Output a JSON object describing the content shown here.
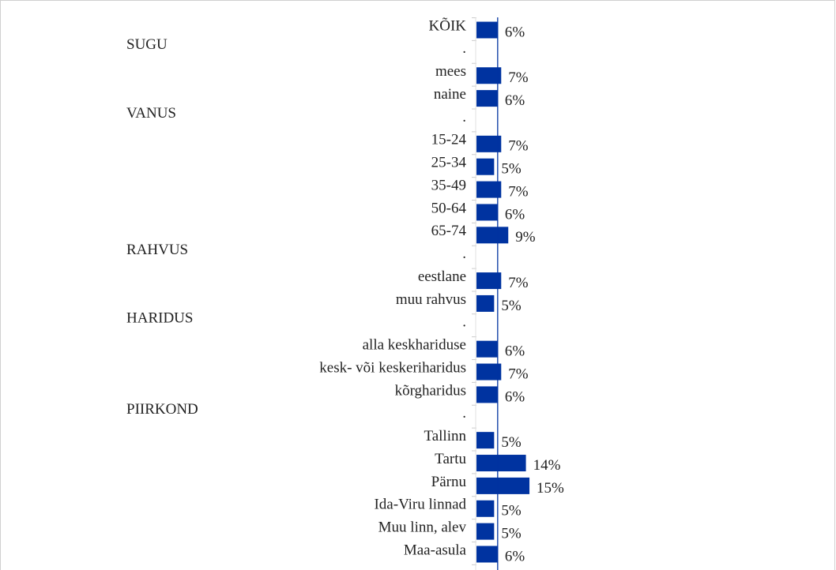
{
  "chart_data": {
    "type": "bar",
    "orientation": "horizontal",
    "categories": [
      "KÕIK",
      ".",
      "mees",
      "naine",
      ".",
      "15-24",
      "25-34",
      "35-49",
      "50-64",
      "65-74",
      ".",
      "eestlane",
      "muu rahvus",
      ".",
      "alla keskhariduse",
      "kesk- või keskeriharidus",
      "kõrgharidus",
      ".",
      "Tallinn",
      "Tartu",
      "Pärnu",
      "Ida-Viru linnad",
      "Muu linn, alev",
      "Maa-asula"
    ],
    "group_labels": [
      null,
      "SUGU",
      null,
      null,
      "VANUS",
      null,
      null,
      null,
      null,
      null,
      "RAHVUS",
      null,
      null,
      "HARIDUS",
      null,
      null,
      null,
      "PIIRKOND",
      null,
      null,
      null,
      null,
      null,
      null
    ],
    "values": [
      6,
      null,
      7,
      6,
      null,
      7,
      5,
      7,
      6,
      9,
      null,
      7,
      5,
      null,
      6,
      7,
      6,
      null,
      5,
      14,
      15,
      5,
      5,
      6
    ],
    "value_labels": [
      "6%",
      null,
      "7%",
      "6%",
      null,
      "7%",
      "5%",
      "7%",
      "6%",
      "9%",
      null,
      "7%",
      "5%",
      null,
      "6%",
      "7%",
      "6%",
      null,
      "5%",
      "14%",
      "15%",
      "5%",
      "5%",
      "6%"
    ],
    "color": "#0033a0",
    "reference_line": 6,
    "xlim": [
      0,
      100
    ]
  }
}
